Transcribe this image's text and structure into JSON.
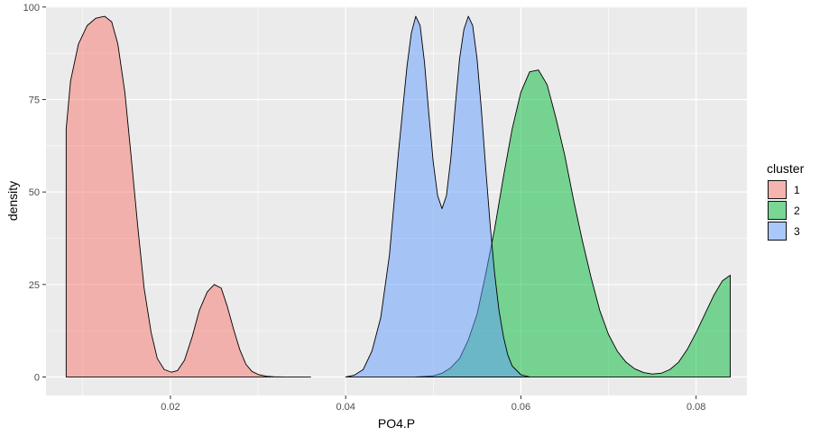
{
  "chart_data": {
    "type": "area",
    "xlabel": "PO4.P",
    "ylabel": "density",
    "xlim": [
      0.0058,
      0.0858
    ],
    "ylim": [
      -5,
      100.2
    ],
    "x_ticks": [
      0.02,
      0.04,
      0.06,
      0.08
    ],
    "x_tick_labels": [
      "0.02",
      "0.04",
      "0.06",
      "0.08"
    ],
    "y_ticks": [
      0,
      25,
      50,
      75,
      100
    ],
    "y_tick_labels": [
      "0",
      "25",
      "50",
      "75",
      "100"
    ],
    "grid": true,
    "panel_background": "#ebebeb",
    "legend": {
      "title": "cluster",
      "position": "right"
    },
    "series": [
      {
        "name": "1",
        "color": "#f8766d",
        "x": [
          0.0081,
          0.0086,
          0.0095,
          0.0105,
          0.0115,
          0.0125,
          0.0133,
          0.014,
          0.0148,
          0.0155,
          0.0163,
          0.017,
          0.0178,
          0.0185,
          0.0193,
          0.0201,
          0.0208,
          0.0216,
          0.0225,
          0.0233,
          0.0242,
          0.025,
          0.0258,
          0.0265,
          0.0272,
          0.0279,
          0.0286,
          0.0293,
          0.0301,
          0.031,
          0.0318,
          0.033,
          0.0345,
          0.036
        ],
        "y": [
          67,
          80,
          90,
          95,
          97,
          97.5,
          96,
          90,
          77,
          60,
          40,
          24,
          12,
          5,
          2,
          1.3,
          1.7,
          4.5,
          11,
          18,
          23,
          25,
          24,
          19,
          13,
          7.5,
          3.5,
          1.5,
          0.6,
          0.2,
          0.08,
          0.02,
          0,
          0
        ]
      },
      {
        "name": "2",
        "color": "#00ba38",
        "x": [
          0.048,
          0.05,
          0.051,
          0.052,
          0.053,
          0.054,
          0.055,
          0.056,
          0.057,
          0.058,
          0.059,
          0.06,
          0.061,
          0.062,
          0.063,
          0.064,
          0.065,
          0.066,
          0.067,
          0.068,
          0.069,
          0.07,
          0.071,
          0.072,
          0.073,
          0.074,
          0.075,
          0.076,
          0.077,
          0.078,
          0.079,
          0.08,
          0.081,
          0.082,
          0.083,
          0.0839
        ],
        "y": [
          0,
          0.3,
          1,
          2.5,
          5,
          10,
          17,
          28,
          40,
          54,
          67,
          77,
          82.5,
          83,
          79,
          70,
          60,
          48,
          37,
          27,
          18,
          11.5,
          7,
          4,
          2.2,
          1.2,
          0.8,
          1,
          2,
          4,
          7.5,
          12,
          17,
          22,
          26,
          27.5
        ]
      },
      {
        "name": "3",
        "color": "#619cff",
        "x": [
          0.04,
          0.041,
          0.042,
          0.043,
          0.044,
          0.045,
          0.046,
          0.047,
          0.0475,
          0.048,
          0.0485,
          0.049,
          0.0495,
          0.05,
          0.0505,
          0.051,
          0.0515,
          0.052,
          0.0525,
          0.053,
          0.0535,
          0.054,
          0.0545,
          0.055,
          0.0555,
          0.056,
          0.0565,
          0.057,
          0.0575,
          0.058,
          0.0585,
          0.059,
          0.06,
          0.061
        ],
        "y": [
          0,
          0.5,
          2,
          7,
          16,
          33,
          60,
          84,
          93,
          97.5,
          95,
          85,
          71,
          58,
          49,
          45.5,
          49,
          59,
          73,
          86,
          94,
          97.5,
          95,
          86,
          72,
          56,
          41,
          28,
          18,
          11,
          6,
          3,
          0.6,
          0
        ]
      }
    ]
  }
}
